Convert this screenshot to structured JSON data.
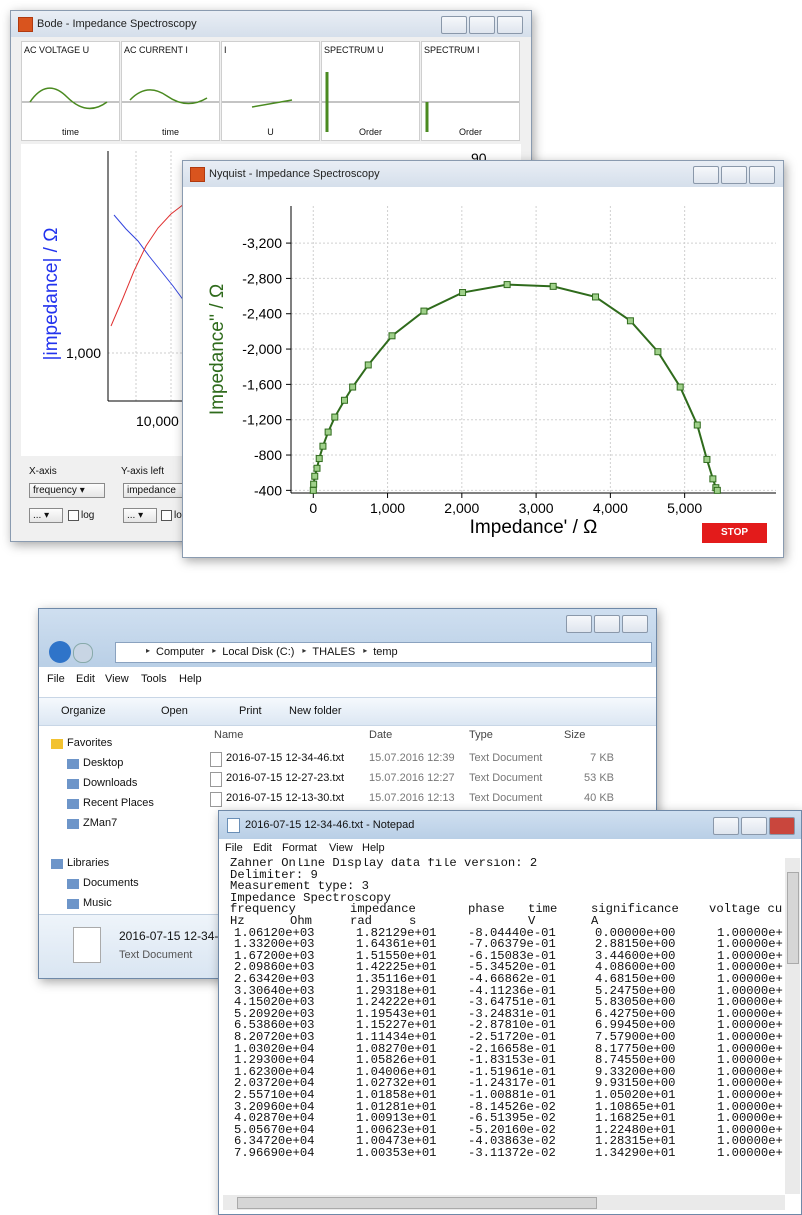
{
  "bode": {
    "title": "Bode - Impedance Spectroscopy",
    "panels": [
      {
        "label": "AC VOLTAGE U",
        "axis": "time"
      },
      {
        "label": "AC CURRENT I",
        "axis": "time"
      },
      {
        "label": "I",
        "axis": "U"
      },
      {
        "label": "SPECTRUM U",
        "axis": "Order"
      },
      {
        "label": "SPECTRUM I",
        "axis": "Order"
      }
    ],
    "y_label": "|impedance| / Ω",
    "y_tick": "1,000",
    "x_tick": "10,000",
    "y2_tick": "90",
    "x_axis": {
      "label": "X-axis",
      "select": "frequency",
      "button": "...",
      "log": "log"
    },
    "y_axis_left": {
      "label": "Y-axis left",
      "select": "impedance",
      "button": "...",
      "log": "log"
    }
  },
  "nyquist": {
    "title": "Nyquist - Impedance Spectroscopy",
    "button": "STOP"
  },
  "chart_data": {
    "type": "line",
    "xlabel": "Impedance' / Ω",
    "ylabel": "Impedance'' / Ω",
    "color": "#2f6b1c",
    "marker": "square",
    "grid": true,
    "x": [
      0,
      5,
      20,
      50,
      80,
      130,
      200,
      290,
      420,
      530,
      740,
      1060,
      1490,
      2010,
      2610,
      3230,
      3800,
      4270,
      4640,
      4940,
      5170,
      5300,
      5380,
      5420,
      5440
    ],
    "values": [
      -400,
      -470,
      -560,
      -650,
      -760,
      -900,
      -1060,
      -1230,
      -1420,
      -1570,
      -1820,
      -2150,
      -2430,
      -2640,
      -2730,
      -2710,
      -2590,
      -2320,
      -1970,
      -1570,
      -1140,
      -750,
      -530,
      -430,
      -400
    ],
    "xlim": [
      -300,
      6230
    ],
    "ylim": [
      -370,
      -3620
    ],
    "xticks": [
      0,
      {
        "value": 1000,
        "label": "1,000"
      },
      {
        "value": 2000,
        "label": "2,000"
      },
      {
        "value": 3000,
        "label": "3,000"
      },
      {
        "value": 4000,
        "label": "4,000"
      },
      {
        "value": 5000,
        "label": "5,000"
      }
    ],
    "yticks": [
      {
        "value": -3200,
        "label": "-3,200"
      },
      {
        "value": -2800,
        "label": "-2,800"
      },
      {
        "value": -2400,
        "label": "-2,400"
      },
      {
        "value": -2000,
        "label": "-2,000"
      },
      {
        "value": -1600,
        "label": "-1,600"
      },
      {
        "value": -1200,
        "label": "-1,200"
      },
      -800,
      -400
    ]
  },
  "explorer": {
    "breadcrumb": [
      "Computer",
      "Local Disk (C:)",
      "THALES",
      "temp"
    ],
    "menu": [
      "File",
      "Edit",
      "View",
      "Tools",
      "Help"
    ],
    "toolbar": [
      "Organize",
      "Open",
      "Print",
      "New folder"
    ],
    "nav": [
      "Favorites",
      "Desktop",
      "Downloads",
      "Recent Places",
      "ZMan7",
      "Libraries",
      "Documents",
      "Music"
    ],
    "columns": [
      "Name",
      "Date",
      "Type",
      "Size"
    ],
    "files": [
      [
        "2016-07-15 12-34-46.txt",
        "15.07.2016 12:39",
        "Text Document",
        "7 KB"
      ],
      [
        "2016-07-15 12-27-23.txt",
        "15.07.2016 12:27",
        "Text Document",
        "53 KB"
      ],
      [
        "2016-07-15 12-13-30.txt",
        "15.07.2016 12:13",
        "Text Document",
        "40 KB"
      ]
    ],
    "details": {
      "name": "2016-07-15 12-34-",
      "type": "Text Document"
    }
  },
  "notepad": {
    "title": "2016-07-15 12-34-46.txt - Notepad",
    "menu": [
      "File",
      "Edit",
      "Format",
      "View",
      "Help"
    ],
    "header_lines": [
      "Zahner Online Display data file version: 2",
      "Delimiter: 9",
      "Measurement type: 3",
      "Impedance Spectroscopy"
    ],
    "columns": [
      "frequency",
      "impedance",
      "phase",
      "time",
      "significance",
      "voltage cu"
    ],
    "units": [
      "Hz",
      "Ohm",
      "rad",
      "s",
      "V",
      "A"
    ],
    "rows": [
      [
        "1.06120e+03",
        "1.82129e+01",
        "-8.04440e-01",
        "0.00000e+00",
        "1.00000e+"
      ],
      [
        "1.33200e+03",
        "1.64361e+01",
        "-7.06379e-01",
        "2.88150e+00",
        "1.00000e+"
      ],
      [
        "1.67200e+03",
        "1.51550e+01",
        "-6.15083e-01",
        "3.44600e+00",
        "1.00000e+"
      ],
      [
        "2.09860e+03",
        "1.42225e+01",
        "-5.34520e-01",
        "4.08600e+00",
        "1.00000e+"
      ],
      [
        "2.63420e+03",
        "1.35116e+01",
        "-4.66862e-01",
        "4.68150e+00",
        "1.00000e+"
      ],
      [
        "3.30640e+03",
        "1.29318e+01",
        "-4.11236e-01",
        "5.24750e+00",
        "1.00000e+"
      ],
      [
        "4.15020e+03",
        "1.24222e+01",
        "-3.64751e-01",
        "5.83050e+00",
        "1.00000e+"
      ],
      [
        "5.20920e+03",
        "1.19543e+01",
        "-3.24831e-01",
        "6.42750e+00",
        "1.00000e+"
      ],
      [
        "6.53860e+03",
        "1.15227e+01",
        "-2.87810e-01",
        "6.99450e+00",
        "1.00000e+"
      ],
      [
        "8.20720e+03",
        "1.11434e+01",
        "-2.51720e-01",
        "7.57900e+00",
        "1.00000e+"
      ],
      [
        "1.03020e+04",
        "1.08270e+01",
        "-2.16658e-01",
        "8.17750e+00",
        "1.00000e+"
      ],
      [
        "1.29300e+04",
        "1.05826e+01",
        "-1.83153e-01",
        "8.74550e+00",
        "1.00000e+"
      ],
      [
        "1.62300e+04",
        "1.04006e+01",
        "-1.51961e-01",
        "9.33200e+00",
        "1.00000e+"
      ],
      [
        "2.03720e+04",
        "1.02732e+01",
        "-1.24317e-01",
        "9.93150e+00",
        "1.00000e+"
      ],
      [
        "2.55710e+04",
        "1.01858e+01",
        "-1.00881e-01",
        "1.05020e+01",
        "1.00000e+"
      ],
      [
        "3.20960e+04",
        "1.01281e+01",
        "-8.14526e-02",
        "1.10865e+01",
        "1.00000e+"
      ],
      [
        "4.02870e+04",
        "1.00913e+01",
        "-6.51395e-02",
        "1.16825e+01",
        "1.00000e+"
      ],
      [
        "5.05670e+04",
        "1.00623e+01",
        "-5.20160e-02",
        "1.22480e+01",
        "1.00000e+"
      ],
      [
        "6.34720e+04",
        "1.00473e+01",
        "-4.03863e-02",
        "1.28315e+01",
        "1.00000e+"
      ],
      [
        "7.96690e+04",
        "1.00353e+01",
        "-3.11372e-02",
        "1.34290e+01",
        "1.00000e+"
      ]
    ]
  }
}
